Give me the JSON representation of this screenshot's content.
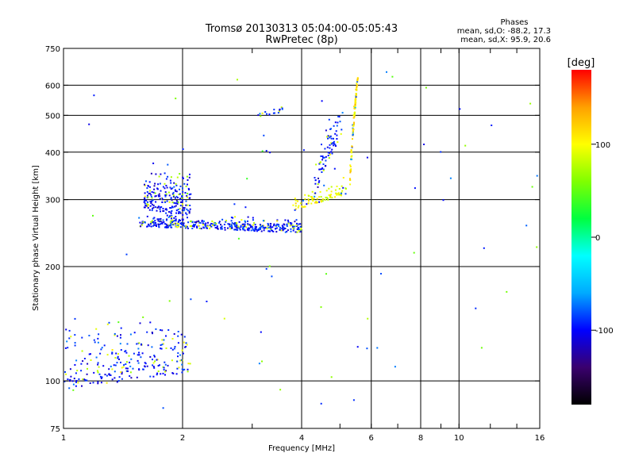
{
  "chart_data": {
    "type": "scatter",
    "title": "Tromsø 20130313 05:04:00-05:05:43",
    "subtitle": "RwPretec (8p)",
    "xlabel": "Frequency [MHz]",
    "ylabel": "Stationary phase Virtual Height [km]",
    "x_scale": "log",
    "y_scale": "log",
    "xlim": [
      1,
      16
    ],
    "ylim": [
      75,
      750
    ],
    "x_ticks": [
      1,
      2,
      4,
      6,
      8,
      10,
      16
    ],
    "x_tick_labels": [
      "1",
      "2",
      "4",
      "6",
      "8",
      "10",
      "16"
    ],
    "x_minor_ticks": [
      3,
      5,
      7,
      9,
      12,
      14
    ],
    "y_ticks": [
      75,
      100,
      200,
      300,
      400,
      500,
      600,
      750
    ],
    "y_tick_labels": [
      "75",
      "100",
      "200",
      "300",
      "400",
      "500",
      "600",
      "750"
    ],
    "grid_x": [
      2,
      4,
      6,
      8,
      10
    ],
    "grid_y": [
      100,
      200,
      300,
      400,
      500,
      600
    ],
    "grid": true,
    "colorbar": {
      "label": "[deg]",
      "range": [
        -180,
        180
      ],
      "ticks": [
        100,
        0,
        -100
      ],
      "tick_labels": [
        "100",
        "0",
        "-100"
      ],
      "colors": [
        "#000000",
        "#3a006e",
        "#0000ff",
        "#00aaff",
        "#00ffff",
        "#00ff40",
        "#80ff00",
        "#ffff00",
        "#ffa000",
        "#ff0000"
      ]
    },
    "stats": {
      "heading": "Phases",
      "line1": "mean, sd,O: -88.2, 17.3",
      "line2": "mean, sd,X: 95.9, 20.6"
    },
    "traces": [
      {
        "name": "",
        "kind": "band",
        "f_range": [
          1.55,
          4.0
        ],
        "h_min": [
          255,
          245
        ],
        "h_spread": 25,
        "phase": -95,
        "n": 420
      },
      {
        "name": "",
        "kind": "band",
        "f_range": [
          1.6,
          2.1
        ],
        "h_min": [
          280,
          270
        ],
        "h_spread": 110,
        "phase": -100,
        "n": 220
      },
      {
        "name": "",
        "kind": "band",
        "f_range": [
          3.8,
          5.2
        ],
        "h_min": [
          280,
          310
        ],
        "h_spread": 40,
        "phase": 95,
        "n": 90
      },
      {
        "name": "",
        "kind": "band",
        "f_range": [
          4.3,
          5.1
        ],
        "h_min": [
          300,
          450
        ],
        "h_spread": 120,
        "phase": -95,
        "n": 80
      },
      {
        "name": "",
        "kind": "band",
        "f_range": [
          5.3,
          5.55
        ],
        "h_min": [
          320,
          620
        ],
        "h_spread": 60,
        "phase": 110,
        "n": 110
      },
      {
        "name": "",
        "kind": "band",
        "f_range": [
          1.0,
          2.1
        ],
        "h_min": [
          95,
          105
        ],
        "h_spread": 55,
        "phase": -95,
        "n": 260
      },
      {
        "name": "",
        "kind": "band",
        "f_range": [
          3.1,
          3.6
        ],
        "h_min": [
          495,
          510
        ],
        "h_spread": 25,
        "phase": -95,
        "n": 18
      },
      {
        "name": "",
        "kind": "noise",
        "f_range": [
          1.0,
          16.0
        ],
        "h_range": [
          80,
          700
        ],
        "phase": 60,
        "n": 70
      }
    ]
  }
}
